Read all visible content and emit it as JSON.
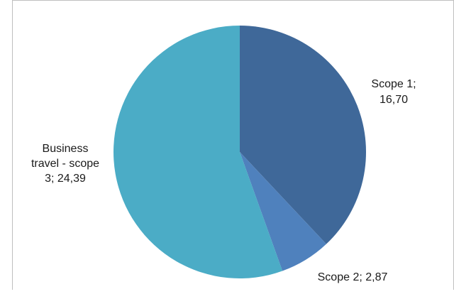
{
  "chart_data": {
    "type": "pie",
    "slices": [
      {
        "label": "Scope 1",
        "value": 16.7,
        "value_text": "16,70",
        "color": "#3f6899",
        "label_lines": [
          "Scope 1;",
          "16,70"
        ]
      },
      {
        "label": "Scope 2",
        "value": 2.87,
        "value_text": "2,87",
        "color": "#4f81bd",
        "label_lines": [
          "Scope 2; 2,87"
        ]
      },
      {
        "label": "Business travel - scope 3",
        "value": 24.39,
        "value_text": "24,39",
        "color": "#4bacc6",
        "label_lines": [
          "Business",
          "travel - scope",
          "3; 24,39"
        ]
      }
    ],
    "start_angle_deg": 0,
    "direction": "clockwise"
  }
}
